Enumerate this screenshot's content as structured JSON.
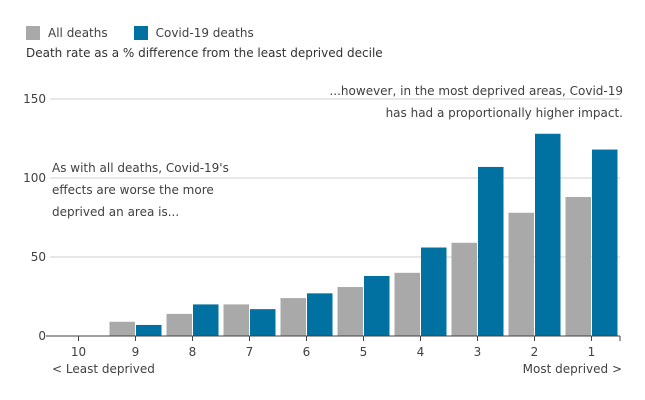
{
  "legend": {
    "all_label": "All deaths",
    "covid_label": "Covid-19 deaths"
  },
  "subtitle": "Death rate as a % difference from the least deprived decile",
  "annotations": {
    "left": [
      "As with all deaths, Covid-19's",
      "effects are worse the more",
      "deprived an area is..."
    ],
    "right": [
      "...however, in the most deprived areas, Covid-19",
      "has had a proportionally higher impact."
    ]
  },
  "axis_ends": {
    "left": "< Least deprived",
    "right": "Most deprived >"
  },
  "chart_data": {
    "type": "bar",
    "title": "",
    "ylabel": "Death rate as a % difference from the least deprived decile",
    "xlabel": "",
    "categories": [
      "10",
      "9",
      "8",
      "7",
      "6",
      "5",
      "4",
      "3",
      "2",
      "1"
    ],
    "series": [
      {
        "name": "All deaths",
        "color": "#a9a9a9",
        "values": [
          0,
          9,
          14,
          20,
          24,
          31,
          40,
          59,
          78,
          88
        ]
      },
      {
        "name": "Covid-19 deaths",
        "color": "#0071a0",
        "values": [
          0,
          7,
          20,
          17,
          27,
          38,
          56,
          107,
          128,
          118
        ]
      }
    ],
    "y_ticks": [
      0,
      50,
      100,
      150
    ],
    "ylim": [
      0,
      150
    ],
    "grid": true,
    "legend_position": "top-left"
  }
}
